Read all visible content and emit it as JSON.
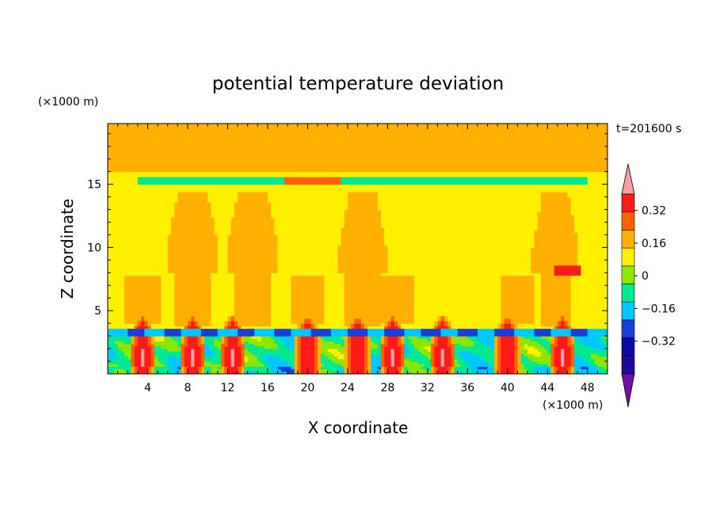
{
  "chart_data": {
    "type": "heatmap",
    "title": "potential temperature deviation",
    "xlabel": "X coordinate",
    "ylabel": "Z coordinate",
    "x_unit": "(×1000 m)",
    "y_unit": "(×1000 m)",
    "time_label": "t=201600 s",
    "xlim": [
      0,
      50
    ],
    "ylim": [
      0,
      19.8
    ],
    "x_ticks": [
      4,
      8,
      12,
      16,
      20,
      24,
      28,
      32,
      36,
      40,
      44,
      48
    ],
    "y_ticks": [
      5,
      10,
      15
    ],
    "colorbar": {
      "levels": [
        -0.48,
        -0.4,
        -0.32,
        -0.24,
        -0.16,
        -0.08,
        0,
        0.08,
        0.16,
        0.24,
        0.32,
        0.4
      ],
      "colors": [
        "#1c0a9a",
        "#0a0aaa",
        "#1a3ed8",
        "#00c8ff",
        "#00e890",
        "#8ce600",
        "#fff000",
        "#ffb000",
        "#ff6000",
        "#ff1a1a"
      ],
      "under_color": "#7010a8",
      "over_color": "#f4a0a0",
      "labeled_values": [
        0.32,
        0.16,
        0,
        -0.16,
        -0.32
      ],
      "labels": [
        "0.32",
        "0.16",
        "0",
        "−0.16",
        "−0.32"
      ]
    },
    "regions": [
      {
        "name": "background",
        "value": 0.04,
        "color": "#00e890"
      },
      {
        "name": "upper-warm-band",
        "value": 0.08,
        "color": "#8ce600",
        "x": [
          0,
          50
        ],
        "y": [
          16.0,
          19.8
        ]
      },
      {
        "name": "tropopause-cool-line",
        "value": -0.12,
        "color": "#00c8ff",
        "x": [
          4,
          48
        ],
        "y": [
          15.2,
          15.6
        ]
      },
      {
        "name": "tropopause-warm-spot",
        "value": 0.2,
        "color": "#fff000",
        "x": [
          17,
          24
        ],
        "y": [
          15.2,
          15.6
        ]
      },
      {
        "name": "boundary-layer-cold",
        "value": -0.24,
        "color": "#1a3ed8",
        "x": [
          0,
          50
        ],
        "y": [
          3.0,
          3.6
        ]
      },
      {
        "name": "boundary-layer-mixed",
        "value": -0.1,
        "color": "#00c8ff",
        "x": [
          0,
          50
        ],
        "y": [
          0,
          3.0
        ]
      },
      {
        "name": "warm-plumes",
        "value": 0.32,
        "color": "#ff1a1a",
        "x_centers": [
          3.5,
          8.5,
          12.5,
          20,
          25,
          28.5,
          33.5,
          40,
          45.5
        ]
      }
    ]
  }
}
